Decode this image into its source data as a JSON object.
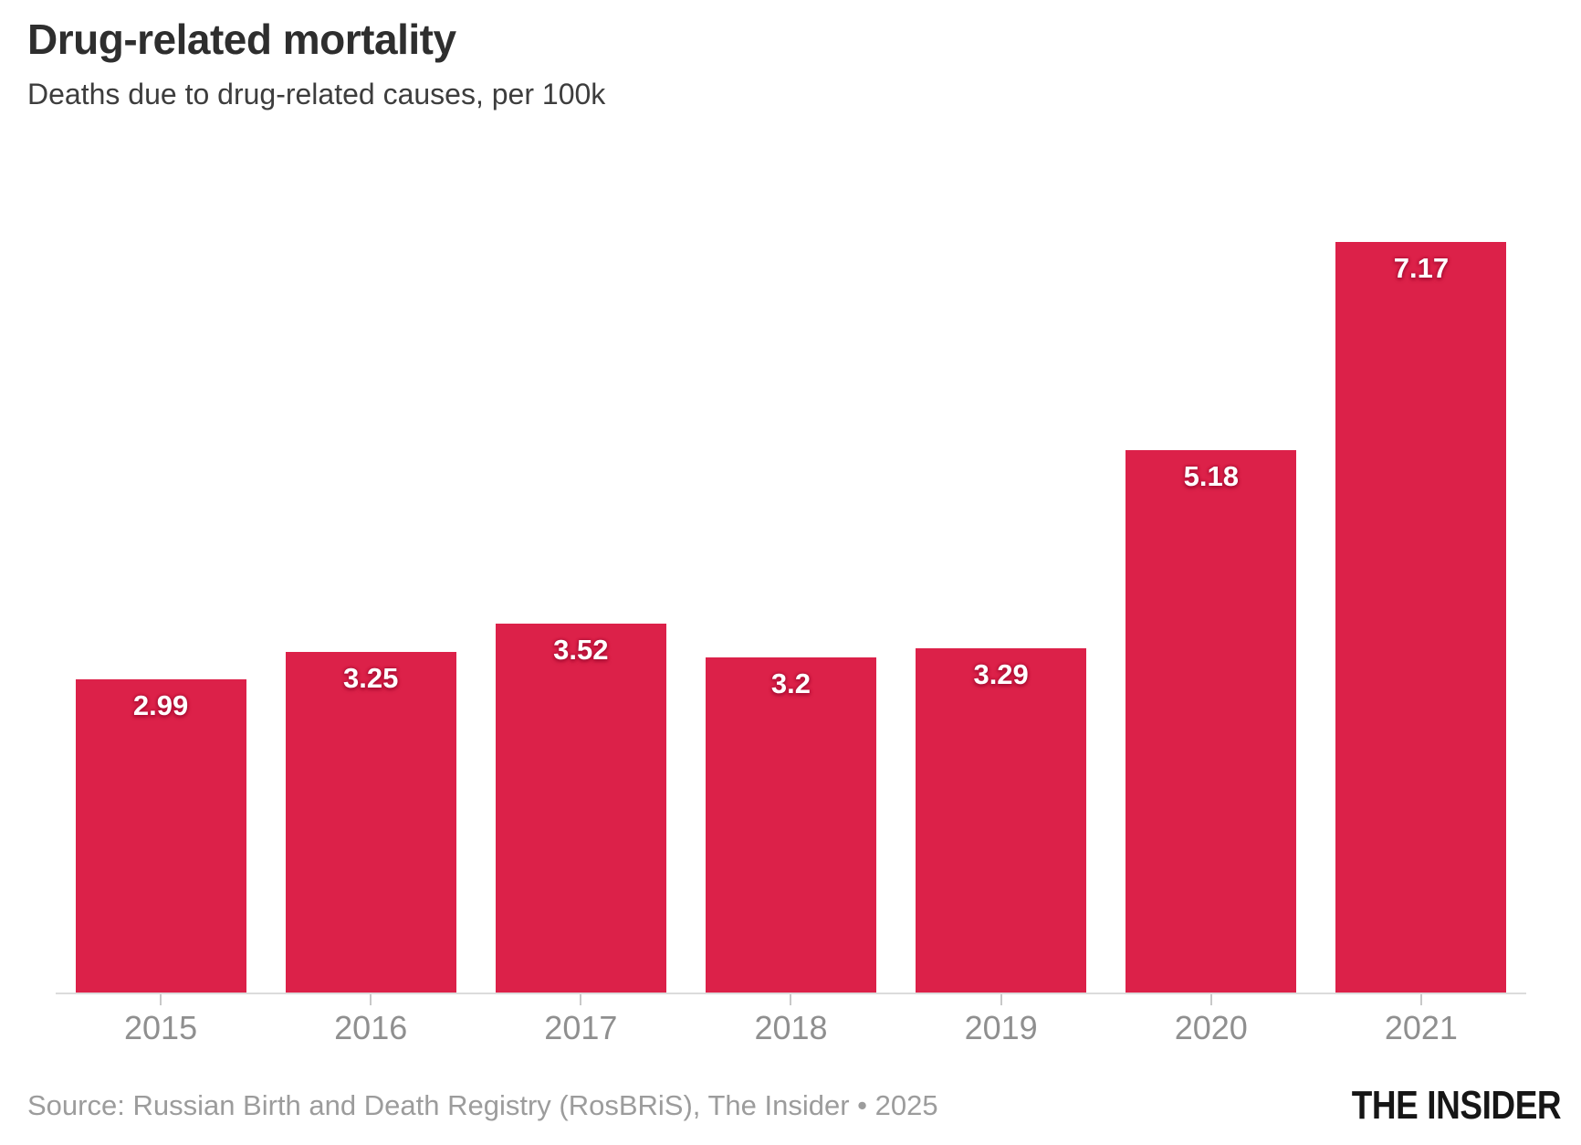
{
  "header": {
    "title": "Drug-related mortality",
    "subtitle": "Deaths due to drug-related causes, per 100k"
  },
  "chart_data": {
    "type": "bar",
    "categories": [
      "2015",
      "2016",
      "2017",
      "2018",
      "2019",
      "2020",
      "2021"
    ],
    "values": [
      2.99,
      3.25,
      3.52,
      3.2,
      3.29,
      5.18,
      7.17
    ],
    "value_labels": [
      "2.99",
      "3.25",
      "3.52",
      "3.2",
      "3.29",
      "5.18",
      "7.17"
    ],
    "title": "Drug-related mortality",
    "subtitle": "Deaths due to drug-related causes, per 100k",
    "xlabel": "",
    "ylabel": "",
    "ylim": [
      0,
      8
    ],
    "grid": false,
    "legend": "none",
    "bar_color": "#dc2149",
    "value_label_color": "#ffffff",
    "axis_line_color": "#dcdcdc",
    "tick_color": "#c8c8c8",
    "category_label_color": "#8f8f8f"
  },
  "footer": {
    "source": "Source: Russian Birth and Death Registry (RosBRiS), The Insider • 2025",
    "brand": "THE INSIDER"
  }
}
